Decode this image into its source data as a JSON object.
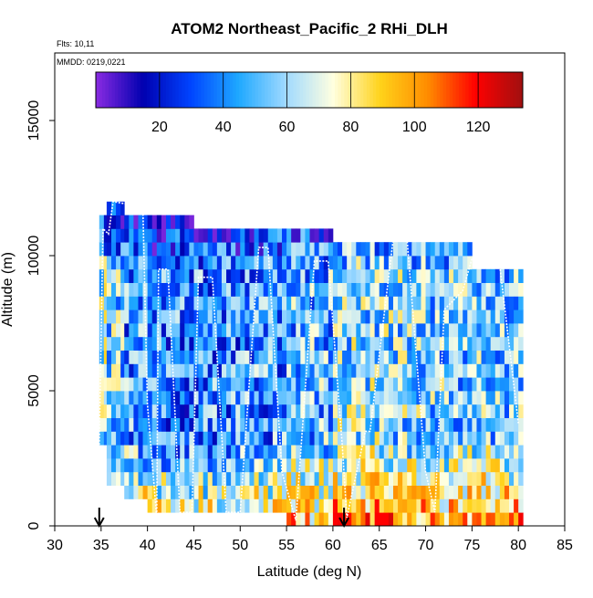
{
  "chart_data": {
    "type": "heatmap",
    "title": "ATOM2 Northeast_Pacific_2 RHi_DLH",
    "flights_note": "Flts: 10,11",
    "date_note": "MMDD: 0219,0221",
    "xlabel": "Latitude (deg N)",
    "ylabel": "Altitude (m)",
    "xlim": [
      30,
      85
    ],
    "ylim": [
      0,
      17500
    ],
    "x_ticks": [
      30,
      35,
      40,
      45,
      50,
      55,
      60,
      65,
      70,
      75,
      80,
      85
    ],
    "y_ticks": [
      0,
      5000,
      10000,
      15000
    ],
    "grid": false,
    "colorbar": {
      "range": [
        0,
        134
      ],
      "ticks": [
        20,
        40,
        60,
        80,
        100,
        120
      ],
      "colors": [
        "#8a2be2",
        "#0000b0",
        "#0044ff",
        "#1ea8ff",
        "#9fd9ff",
        "#ffffe0",
        "#ffd21a",
        "#ff8c00",
        "#ff0000",
        "#a01010"
      ],
      "position": "top"
    },
    "bin_size": {
      "lat": 0.5,
      "alt": 500
    },
    "segments": [
      {
        "lat": [
          34.8,
          35.6
        ],
        "alt": [
          3000,
          11500
        ],
        "v": 62
      },
      {
        "lat": [
          35.6,
          37.5
        ],
        "alt": [
          1500,
          12000
        ],
        "v": 55
      },
      {
        "lat": [
          37.5,
          40.0
        ],
        "alt": [
          1000,
          11500
        ],
        "v": 45
      },
      {
        "lat": [
          40.0,
          45.0
        ],
        "alt": [
          500,
          11500
        ],
        "v": 40
      },
      {
        "lat": [
          45.0,
          50.0
        ],
        "alt": [
          500,
          11000
        ],
        "v": 42
      },
      {
        "lat": [
          50.0,
          55.0
        ],
        "alt": [
          500,
          11000
        ],
        "v": 45
      },
      {
        "lat": [
          55.0,
          60.0
        ],
        "alt": [
          0,
          11000
        ],
        "v": 50
      },
      {
        "lat": [
          60.0,
          65.0
        ],
        "alt": [
          0,
          10500
        ],
        "v": 60
      },
      {
        "lat": [
          65.0,
          70.0
        ],
        "alt": [
          0,
          10500
        ],
        "v": 58
      },
      {
        "lat": [
          70.0,
          75.0
        ],
        "alt": [
          0,
          10500
        ],
        "v": 55
      },
      {
        "lat": [
          75.0,
          80.5
        ],
        "alt": [
          0,
          9500
        ],
        "v": 55
      }
    ],
    "flight_track": [
      [
        34.8,
        3000
      ],
      [
        35.2,
        11000
      ],
      [
        35.8,
        10800
      ],
      [
        36.3,
        12000
      ],
      [
        39.5,
        11800
      ],
      [
        40.0,
        4500
      ],
      [
        41.0,
        300
      ],
      [
        41.2,
        9500
      ],
      [
        42.2,
        9500
      ],
      [
        43.5,
        500
      ],
      [
        44.8,
        500
      ],
      [
        45.5,
        9200
      ],
      [
        47.0,
        9200
      ],
      [
        48.5,
        500
      ],
      [
        50.0,
        500
      ],
      [
        52.0,
        10300
      ],
      [
        53.0,
        10300
      ],
      [
        54.5,
        2000
      ],
      [
        56.0,
        200
      ],
      [
        58.0,
        9800
      ],
      [
        59.5,
        9800
      ],
      [
        61.0,
        3000
      ],
      [
        61.5,
        300
      ],
      [
        63.5,
        3500
      ],
      [
        64.0,
        3500
      ],
      [
        66.5,
        10600
      ],
      [
        68.0,
        10600
      ],
      [
        70.0,
        2000
      ],
      [
        71.0,
        500
      ],
      [
        72.0,
        8000
      ],
      [
        74.0,
        8700
      ],
      [
        75.0,
        9900
      ],
      [
        76.5,
        9600
      ],
      [
        78.0,
        9600
      ],
      [
        80.0,
        3800
      ]
    ],
    "arrows": [
      34.8,
      61.2
    ]
  }
}
